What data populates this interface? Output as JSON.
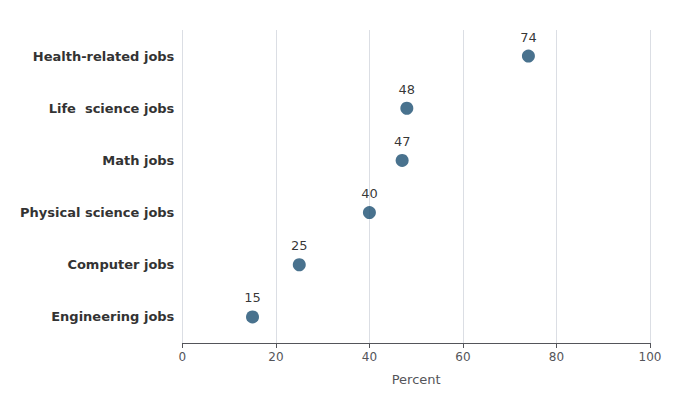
{
  "chart_data": {
    "type": "scatter",
    "orientation": "horizontal",
    "categories": [
      "Health-related jobs",
      "Life  science jobs",
      "Math jobs",
      "Physical science jobs",
      "Computer jobs",
      "Engineering jobs"
    ],
    "values": [
      74,
      48,
      47,
      40,
      25,
      15
    ],
    "color": "#1b4f72",
    "marker": "circle",
    "xlabel": "Percent",
    "xlim": [
      0,
      100
    ],
    "xticks": [
      0,
      20,
      40,
      60,
      80,
      100
    ],
    "grid": true,
    "data_labels": true
  }
}
